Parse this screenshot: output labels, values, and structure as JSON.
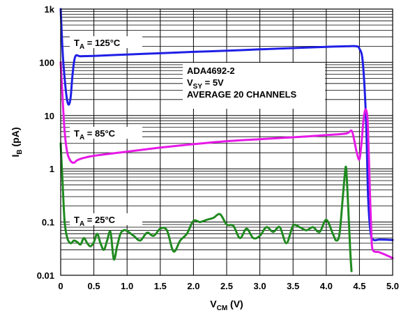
{
  "chart_data": {
    "type": "line",
    "xlabel": {
      "main": "V",
      "sub": "CM",
      "tail": " (V)"
    },
    "ylabel": {
      "main": "I",
      "sub": "B",
      "tail": " (pA)"
    },
    "x_scale": "linear",
    "y_scale": "log",
    "xlim": [
      0,
      5.0
    ],
    "ylim": [
      0.01,
      1000
    ],
    "grid": true,
    "x_ticks": [
      0,
      0.5,
      1.0,
      1.5,
      2.0,
      2.5,
      3.0,
      3.5,
      4.0,
      4.5,
      5.0
    ],
    "x_tick_labels": [
      "0",
      "0.5",
      "1.0",
      "1.5",
      "2.0",
      "2.5",
      "3.0",
      "3.5",
      "4.0",
      "4.5",
      "5.0"
    ],
    "y_ticks": [
      0.01,
      0.1,
      1,
      10,
      100,
      1000
    ],
    "y_tick_labels": [
      "0.01",
      "0.1",
      "1",
      "10",
      "100",
      "1k"
    ],
    "annotation_box": [
      {
        "main": "ADA4692-2",
        "sub": "",
        "tail": ""
      },
      {
        "main": "V",
        "sub": "SY",
        "tail": " = 5V"
      },
      {
        "main": "AVERAGE 20 CHANNELS",
        "sub": "",
        "tail": ""
      }
    ],
    "series": [
      {
        "label": {
          "main": "T",
          "sub": "A",
          "tail": " = 125°C"
        },
        "color": "#1f1fe6",
        "x": [
          0,
          0.03,
          0.06,
          0.09,
          0.12,
          0.15,
          0.18,
          0.22,
          0.3,
          0.5,
          1.0,
          1.5,
          2.0,
          2.5,
          3.0,
          3.5,
          4.0,
          4.3,
          4.45,
          4.5,
          4.55,
          4.6,
          4.63,
          4.67,
          4.72,
          4.8,
          5.0
        ],
        "y": [
          1000,
          150,
          50,
          22,
          16,
          22,
          60,
          128,
          130,
          132,
          140,
          148,
          157,
          165,
          175,
          185,
          195,
          200,
          200,
          180,
          100,
          8,
          0.3,
          0.06,
          0.046,
          0.047,
          0.046
        ]
      },
      {
        "label": {
          "main": "T",
          "sub": "A",
          "tail": " = 85°C"
        },
        "color": "#e619e6",
        "x": [
          0,
          0.03,
          0.06,
          0.1,
          0.15,
          0.2,
          0.25,
          0.35,
          0.5,
          1.0,
          1.5,
          2.0,
          2.5,
          3.0,
          3.5,
          4.0,
          4.3,
          4.38,
          4.42,
          4.46,
          4.5,
          4.53,
          4.56,
          4.59,
          4.62,
          4.64,
          4.66,
          4.68,
          4.7,
          4.8,
          4.9,
          5.0
        ],
        "y": [
          100,
          20,
          5,
          2,
          1.4,
          1.3,
          1.45,
          1.6,
          1.75,
          2.1,
          2.5,
          2.9,
          3.3,
          3.6,
          3.9,
          4.3,
          4.6,
          5.2,
          3.5,
          2,
          1.5,
          3,
          8,
          13,
          9,
          2,
          0.3,
          0.06,
          0.03,
          0.027,
          0.024,
          0.021
        ]
      },
      {
        "label": {
          "main": "T",
          "sub": "A",
          "tail": " = 25°C"
        },
        "color": "#1f8a1f",
        "x": [
          0,
          0.03,
          0.06,
          0.1,
          0.15,
          0.2,
          0.25,
          0.3,
          0.35,
          0.4,
          0.45,
          0.5,
          0.55,
          0.6,
          0.65,
          0.7,
          0.75,
          0.8,
          0.85,
          0.9,
          0.95,
          1.0,
          1.1,
          1.2,
          1.3,
          1.4,
          1.5,
          1.6,
          1.7,
          1.8,
          1.9,
          2.0,
          2.1,
          2.2,
          2.3,
          2.4,
          2.5,
          2.6,
          2.7,
          2.8,
          2.9,
          3.0,
          3.1,
          3.2,
          3.3,
          3.4,
          3.5,
          3.6,
          3.7,
          3.8,
          3.9,
          4.0,
          4.1,
          4.15,
          4.2,
          4.25,
          4.28,
          4.3,
          4.33,
          4.36,
          4.38
        ],
        "y": [
          3,
          0.5,
          0.1,
          0.05,
          0.04,
          0.045,
          0.042,
          0.038,
          0.05,
          0.04,
          0.035,
          0.042,
          0.06,
          0.04,
          0.03,
          0.045,
          0.065,
          0.02,
          0.035,
          0.06,
          0.07,
          0.068,
          0.055,
          0.045,
          0.063,
          0.055,
          0.075,
          0.07,
          0.028,
          0.045,
          0.06,
          0.105,
          0.1,
          0.11,
          0.12,
          0.14,
          0.09,
          0.085,
          0.05,
          0.075,
          0.05,
          0.055,
          0.08,
          0.065,
          0.08,
          0.04,
          0.085,
          0.08,
          0.07,
          0.08,
          0.065,
          0.11,
          0.06,
          0.045,
          0.06,
          0.3,
          0.8,
          1.0,
          0.2,
          0.03,
          0.012
        ]
      }
    ]
  }
}
